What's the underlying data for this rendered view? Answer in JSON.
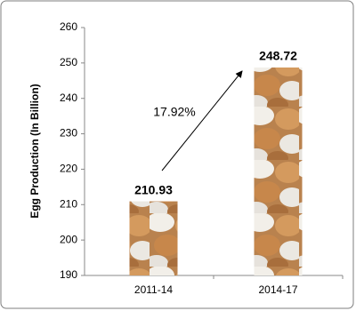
{
  "chart_data": {
    "type": "bar",
    "y_label": "Egg Production (In Billion)",
    "categories": [
      "2011-14",
      "2014-17"
    ],
    "values": [
      210.93,
      248.72
    ],
    "ylim": [
      190,
      260
    ],
    "yticks": [
      190,
      200,
      210,
      220,
      230,
      240,
      250,
      260
    ],
    "annotation": "17.92%"
  }
}
